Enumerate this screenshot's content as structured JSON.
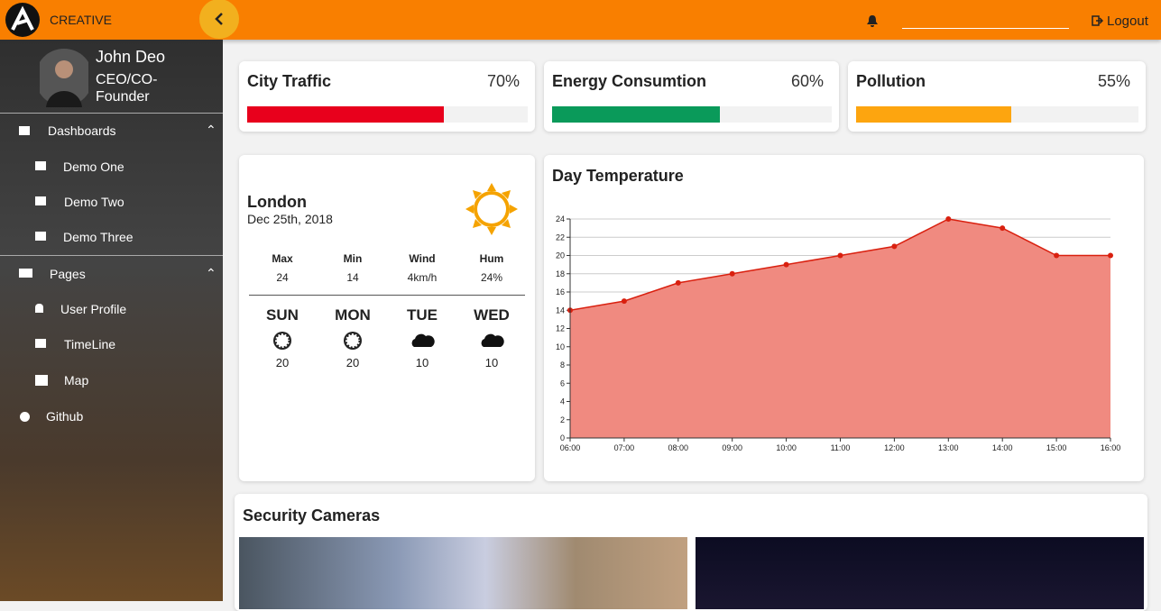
{
  "header": {
    "brand": "CREATIVE",
    "logout": "Logout"
  },
  "sidebar": {
    "user": {
      "name": "John Deo",
      "role": "CEO/CO-Founder"
    },
    "menu": [
      {
        "label": "Dashboards",
        "children": [
          "Demo One",
          "Demo Two",
          "Demo Three"
        ]
      },
      {
        "label": "Pages",
        "children": [
          "User Profile",
          "TimeLine",
          "Map"
        ]
      },
      {
        "label": "Github"
      }
    ]
  },
  "stats": [
    {
      "label": "City Traffic",
      "value": 70,
      "value_label": "70%",
      "color": "#e8001c"
    },
    {
      "label": "Energy Consumtion",
      "value": 60,
      "value_label": "60%",
      "color": "#0a9a5a"
    },
    {
      "label": "Pollution",
      "value": 55,
      "value_label": "55%",
      "color": "#fda50f"
    }
  ],
  "weather": {
    "city": "London",
    "date": "Dec 25th, 2018",
    "details": [
      {
        "label": "Max",
        "value": "24"
      },
      {
        "label": "Min",
        "value": "14"
      },
      {
        "label": "Wind",
        "value": "4km/h"
      },
      {
        "label": "Hum",
        "value": "24%"
      }
    ],
    "forecast": [
      {
        "day": "SUN",
        "temp": "20"
      },
      {
        "day": "MON",
        "temp": "20"
      },
      {
        "day": "TUE",
        "temp": "10"
      },
      {
        "day": "WED",
        "temp": "10"
      }
    ]
  },
  "chart_data": {
    "type": "area",
    "title": "Day Temperature",
    "categories": [
      "06:00",
      "07:00",
      "08:00",
      "09:00",
      "10:00",
      "11:00",
      "12:00",
      "13:00",
      "14:00",
      "15:00",
      "16:00"
    ],
    "values": [
      14,
      15,
      17,
      18,
      19,
      20,
      21,
      24,
      23,
      20,
      20
    ],
    "color": "#d9200f",
    "fill": "#f08a80",
    "ylim": [
      0,
      24
    ],
    "yticks": [
      0,
      2,
      4,
      6,
      8,
      10,
      12,
      14,
      16,
      18,
      20,
      22,
      24
    ],
    "grid": true
  },
  "cameras": {
    "title": "Security Cameras"
  }
}
